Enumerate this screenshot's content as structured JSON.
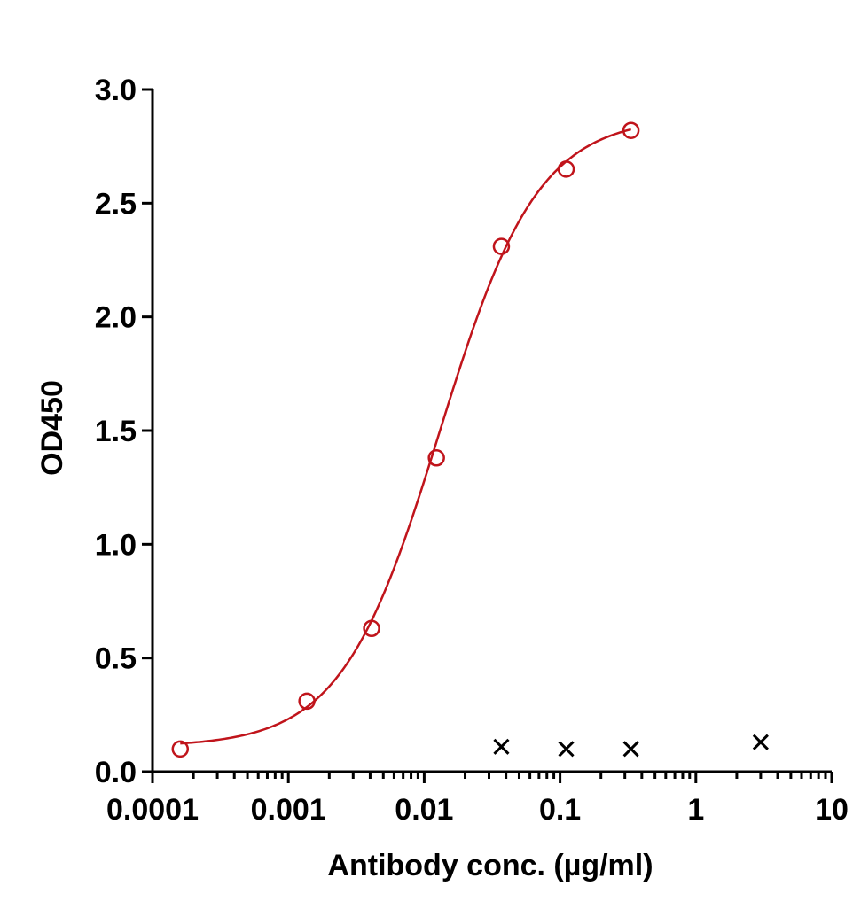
{
  "chart_data": {
    "type": "scatter",
    "xlabel": "Antibody conc. (µg/ml)",
    "ylabel": "OD450",
    "x_scale": "log",
    "xlim": [
      0.0001,
      10
    ],
    "ylim": [
      0,
      3.0
    ],
    "x_ticks": [
      "0.0001",
      "0.001",
      "0.01",
      "0.1",
      "1",
      "10"
    ],
    "y_ticks": [
      "0.0",
      "0.5",
      "1.0",
      "1.5",
      "2.0",
      "2.5",
      "3.0"
    ],
    "grid": false,
    "colors": {
      "fit": "#c0141b",
      "control": "#000000"
    },
    "series": [
      {
        "marker": "circle",
        "color": "#c0141b",
        "points": [
          {
            "x": 0.00016,
            "y": 0.1
          },
          {
            "x": 0.00137,
            "y": 0.31
          },
          {
            "x": 0.0041,
            "y": 0.63
          },
          {
            "x": 0.0123,
            "y": 1.38
          },
          {
            "x": 0.037,
            "y": 2.31
          },
          {
            "x": 0.111,
            "y": 2.65
          },
          {
            "x": 0.333,
            "y": 2.82
          }
        ],
        "fit": {
          "model": "4PL",
          "bottom": 0.11,
          "top": 2.88,
          "ec50": 0.013,
          "hill": 1.2
        }
      },
      {
        "marker": "x",
        "color": "#000000",
        "points": [
          {
            "x": 0.037,
            "y": 0.11
          },
          {
            "x": 0.111,
            "y": 0.1
          },
          {
            "x": 0.333,
            "y": 0.1
          },
          {
            "x": 3.0,
            "y": 0.13
          }
        ]
      }
    ]
  }
}
